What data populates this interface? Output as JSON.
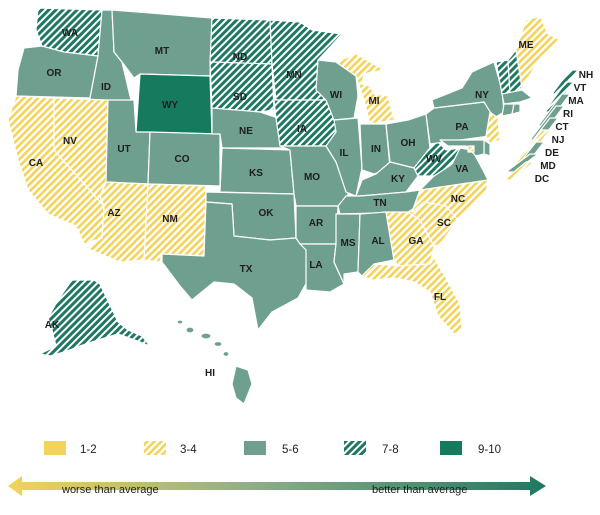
{
  "colors": {
    "c12": "#f3d35a",
    "c34_stripe": "#f3d35a",
    "c56": "#6f9f8e",
    "c78_stripe": "#1f7862",
    "c910": "#167a5e",
    "arrow_left": "#f3d35a",
    "arrow_right": "#1f7862"
  },
  "legend": [
    {
      "label": "1-2",
      "fill": "c12"
    },
    {
      "label": "3-4",
      "fill": "c34"
    },
    {
      "label": "5-6",
      "fill": "c56"
    },
    {
      "label": "7-8",
      "fill": "c78"
    },
    {
      "label": "9-10",
      "fill": "c910"
    }
  ],
  "arrow": {
    "left_label": "worse than average",
    "right_label": "better than average"
  },
  "states": {
    "WA": "7-8",
    "OR": "5-6",
    "ID": "5-6",
    "MT": "5-6",
    "WY": "9-10",
    "ND": "7-8",
    "SD": "7-8",
    "MN": "7-8",
    "IA": "7-8",
    "NE": "5-6",
    "CA": "3-4",
    "NV": "3-4",
    "UT": "5-6",
    "CO": "5-6",
    "AZ": "3-4",
    "NM": "3-4",
    "KS": "5-6",
    "OK": "5-6",
    "TX": "5-6",
    "MO": "5-6",
    "AR": "5-6",
    "LA": "5-6",
    "WI": "5-6",
    "IL": "5-6",
    "MI": "3-4",
    "IN": "5-6",
    "OH": "5-6",
    "KY": "5-6",
    "TN": "5-6",
    "MS": "5-6",
    "AL": "5-6",
    "GA": "3-4",
    "FL": "3-4",
    "SC": "3-4",
    "NC": "3-4",
    "VA": "5-6",
    "WV": "7-8",
    "PA": "5-6",
    "NY": "5-6",
    "ME": "3-4",
    "VT": "7-8",
    "NH": "7-8",
    "MA": "5-6",
    "RI": "5-6",
    "CT": "5-6",
    "NJ": "3-4",
    "DE": "5-6",
    "MD": "5-6",
    "DC": "3-4",
    "AK": "7-8",
    "HI": "5-6"
  },
  "labels": {
    "WA": "WA",
    "OR": "OR",
    "ID": "ID",
    "MT": "MT",
    "WY": "WY",
    "ND": "ND",
    "SD": "SD",
    "MN": "MN",
    "IA": "IA",
    "NE": "NE",
    "CA": "CA",
    "NV": "NV",
    "UT": "UT",
    "CO": "CO",
    "AZ": "AZ",
    "NM": "NM",
    "KS": "KS",
    "OK": "OK",
    "TX": "TX",
    "MO": "MO",
    "AR": "AR",
    "LA": "LA",
    "WI": "WI",
    "IL": "IL",
    "MI": "MI",
    "IN": "IN",
    "OH": "OH",
    "KY": "KY",
    "TN": "TN",
    "MS": "MS",
    "AL": "AL",
    "GA": "GA",
    "FL": "FL",
    "SC": "SC",
    "NC": "NC",
    "VA": "VA",
    "WV": "WV",
    "PA": "PA",
    "NY": "NY",
    "ME": "ME",
    "NH": "NH",
    "VT": "VT",
    "MA": "MA",
    "RI": "RI",
    "CT": "CT",
    "NJ": "NJ",
    "DE": "DE",
    "MD": "MD",
    "DC": "DC",
    "AK": "AK",
    "HI": "HI"
  }
}
